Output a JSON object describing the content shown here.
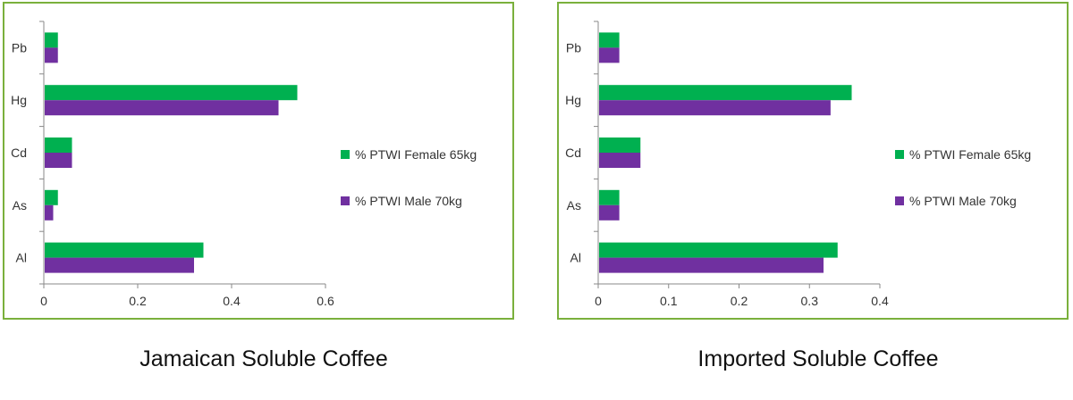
{
  "chart_data": [
    {
      "type": "bar",
      "orientation": "horizontal",
      "categories": [
        "Al",
        "As",
        "Cd",
        "Hg",
        "Pb"
      ],
      "series": [
        {
          "name": "% PTWI Male 70kg",
          "color": "#7030a0",
          "values": [
            0.32,
            0.02,
            0.06,
            0.5,
            0.03
          ]
        },
        {
          "name": "% PTWI Female 65kg",
          "color": "#00b050",
          "values": [
            0.34,
            0.03,
            0.06,
            0.54,
            0.03
          ]
        }
      ],
      "xticks": [
        "0",
        "0.2",
        "0.4",
        "0.6"
      ],
      "xlim": [
        0,
        0.6
      ],
      "grid": false,
      "legend": "right",
      "caption": "Jamaican Soluble Coffee"
    },
    {
      "type": "bar",
      "orientation": "horizontal",
      "categories": [
        "Al",
        "As",
        "Cd",
        "Hg",
        "Pb"
      ],
      "series": [
        {
          "name": "% PTWI Male 70kg",
          "color": "#7030a0",
          "values": [
            0.32,
            0.03,
            0.06,
            0.33,
            0.03
          ]
        },
        {
          "name": "% PTWI Female 65kg",
          "color": "#00b050",
          "values": [
            0.34,
            0.03,
            0.06,
            0.36,
            0.03
          ]
        }
      ],
      "xticks": [
        "0",
        "0.1",
        "0.2",
        "0.3",
        "0.4"
      ],
      "xlim": [
        0,
        0.4
      ],
      "grid": false,
      "legend": "right",
      "caption": "Imported Soluble Coffee"
    }
  ]
}
